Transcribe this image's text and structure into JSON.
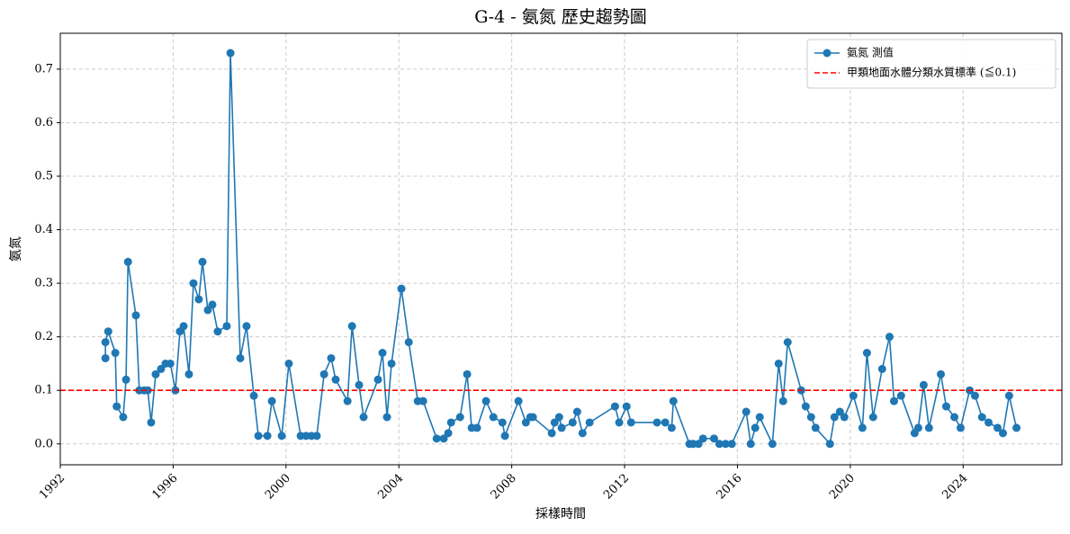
{
  "chart_data": {
    "type": "line",
    "title": "G-4 - 氨氮 歷史趨勢圖",
    "x_label": "採樣時間",
    "y_label": "氨氮",
    "x": [
      1993.6,
      1993.6,
      1993.7,
      1993.95,
      1994.0,
      1994.23,
      1994.33,
      1994.4,
      1994.68,
      1994.8,
      1994.97,
      1995.1,
      1995.22,
      1995.38,
      1995.57,
      1995.73,
      1995.9,
      1996.08,
      1996.24,
      1996.37,
      1996.56,
      1996.72,
      1996.91,
      1997.04,
      1997.23,
      1997.39,
      1997.58,
      1997.9,
      1998.03,
      1998.38,
      1998.6,
      1998.86,
      1999.02,
      1999.34,
      1999.5,
      1999.85,
      2000.1,
      2000.52,
      2000.71,
      2000.9,
      2001.09,
      2001.35,
      2001.6,
      2001.76,
      2002.18,
      2002.34,
      2002.59,
      2002.75,
      2003.26,
      2003.42,
      2003.58,
      2003.74,
      2004.09,
      2004.35,
      2004.67,
      2004.86,
      2005.34,
      2005.59,
      2005.75,
      2005.85,
      2006.17,
      2006.42,
      2006.58,
      2006.77,
      2007.09,
      2007.35,
      2007.67,
      2007.76,
      2008.24,
      2008.5,
      2008.66,
      2008.75,
      2009.42,
      2009.52,
      2009.68,
      2009.77,
      2010.16,
      2010.32,
      2010.51,
      2010.76,
      2011.66,
      2011.81,
      2012.07,
      2012.23,
      2013.15,
      2013.44,
      2013.67,
      2013.73,
      2014.3,
      2014.43,
      2014.62,
      2014.78,
      2015.17,
      2015.36,
      2015.58,
      2015.8,
      2016.31,
      2016.47,
      2016.63,
      2016.79,
      2017.24,
      2017.46,
      2017.62,
      2017.78,
      2018.26,
      2018.42,
      2018.61,
      2018.77,
      2019.28,
      2019.44,
      2019.63,
      2019.79,
      2020.11,
      2020.43,
      2020.59,
      2020.81,
      2021.13,
      2021.39,
      2021.55,
      2021.8,
      2022.28,
      2022.41,
      2022.6,
      2022.79,
      2023.21,
      2023.4,
      2023.69,
      2023.91,
      2024.23,
      2024.42,
      2024.67,
      2024.9,
      2025.22,
      2025.41,
      2025.63,
      2025.89
    ],
    "series": [
      {
        "name": "氨氮 測值",
        "color": "#1f77b4",
        "values": [
          0.16,
          0.19,
          0.21,
          0.17,
          0.07,
          0.05,
          0.12,
          0.34,
          0.24,
          0.1,
          0.1,
          0.1,
          0.04,
          0.13,
          0.14,
          0.15,
          0.15,
          0.1,
          0.21,
          0.22,
          0.13,
          0.3,
          0.27,
          0.34,
          0.25,
          0.26,
          0.21,
          0.22,
          0.73,
          0.16,
          0.22,
          0.09,
          0.015,
          0.015,
          0.08,
          0.015,
          0.15,
          0.015,
          0.015,
          0.015,
          0.015,
          0.13,
          0.16,
          0.12,
          0.08,
          0.22,
          0.11,
          0.05,
          0.12,
          0.17,
          0.05,
          0.15,
          0.29,
          0.19,
          0.08,
          0.08,
          0.01,
          0.01,
          0.02,
          0.04,
          0.05,
          0.13,
          0.03,
          0.03,
          0.08,
          0.05,
          0.04,
          0.015,
          0.08,
          0.04,
          0.05,
          0.05,
          0.02,
          0.04,
          0.05,
          0.03,
          0.04,
          0.06,
          0.02,
          0.04,
          0.07,
          0.04,
          0.07,
          0.04,
          0.04,
          0.04,
          0.03,
          0.08,
          0,
          0,
          0,
          0.01,
          0.01,
          0,
          0,
          0,
          0.06,
          0,
          0.03,
          0.05,
          0,
          0.15,
          0.08,
          0.19,
          0.1,
          0.07,
          0.05,
          0.03,
          0,
          0.05,
          0.06,
          0.05,
          0.09,
          0.03,
          0.17,
          0.05,
          0.14,
          0.2,
          0.08,
          0.09,
          0.02,
          0.03,
          0.11,
          0.03,
          0.13,
          0.07,
          0.05,
          0.03,
          0.1,
          0.09,
          0.05,
          0.04,
          0.03,
          0.02,
          0.09,
          0.03
        ]
      }
    ],
    "reference_lines": [
      {
        "name": "甲類地面水體分類水質標準 (≦0.1)",
        "value": 0.1,
        "color": "#ff0000"
      }
    ],
    "xlim": [
      1992.0,
      2027.5
    ],
    "xticks": [
      1992,
      1996,
      2000,
      2004,
      2008,
      2012,
      2016,
      2020,
      2024
    ],
    "ylim": [
      -0.039,
      0.767
    ],
    "yticks": [
      {
        "value": 0,
        "label": "0.0"
      },
      0.1,
      0.2,
      0.3,
      0.4,
      0.5,
      0.6,
      0.7
    ],
    "grid": true,
    "legend": "upper right"
  }
}
